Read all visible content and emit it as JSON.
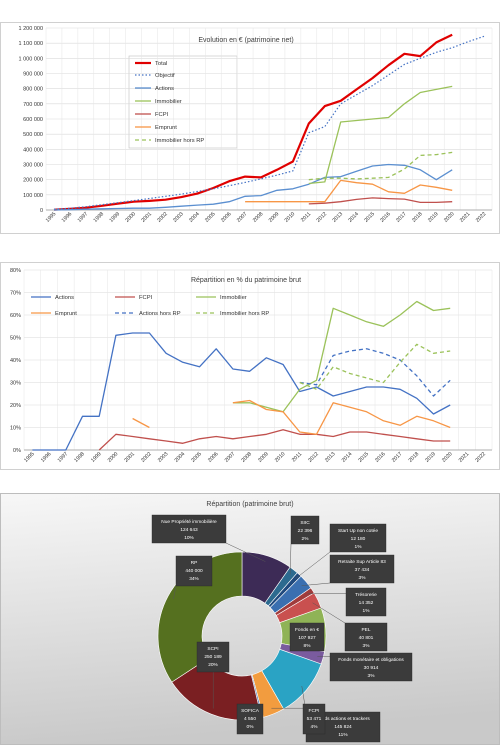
{
  "chart_data": [
    {
      "type": "line",
      "title": "Evolution  en € (patrimoine  net)",
      "x": [
        "1995",
        "1996",
        "1997",
        "1998",
        "1999",
        "2000",
        "2001",
        "2002",
        "2003",
        "2004",
        "2005",
        "2006",
        "2007",
        "2008",
        "2009",
        "2010",
        "2011",
        "2012",
        "2013",
        "2014",
        "2015",
        "2016",
        "2017",
        "2018",
        "2019",
        "2020",
        "2021",
        "2022"
      ],
      "ylim": [
        0,
        1200000
      ],
      "yticks": [
        "0",
        "100 000",
        "200 000",
        "300 000",
        "400 000",
        "500 000",
        "600 000",
        "700 000",
        "800 000",
        "900 000",
        "1 000 000",
        "1 100 000",
        "1 200 000"
      ],
      "grid": true,
      "legend_position": "inside-top-left",
      "series": [
        {
          "name": "Total",
          "color": "#e00000",
          "dash": "solid",
          "width": 2.2,
          "values": [
            2000,
            8000,
            15000,
            28000,
            42000,
            55000,
            60000,
            68000,
            85000,
            108000,
            145000,
            190000,
            220000,
            215000,
            265000,
            320000,
            570000,
            685000,
            720000,
            795000,
            870000,
            955000,
            1030000,
            1015000,
            1105000,
            1155000,
            null,
            null
          ]
        },
        {
          "name": "Objectif",
          "color": "#4472c4",
          "dash": "dot",
          "width": 1.2,
          "values": [
            5000,
            12000,
            22000,
            35000,
            48000,
            62000,
            76000,
            90000,
            105000,
            122000,
            140000,
            160000,
            182000,
            205000,
            230000,
            258000,
            510000,
            550000,
            700000,
            760000,
            820000,
            890000,
            960000,
            1000000,
            1040000,
            1070000,
            1110000,
            1145000
          ]
        },
        {
          "name": "Actions",
          "color": "#5b8fd0",
          "dash": "solid",
          "width": 1.3,
          "values": [
            0,
            2000,
            5000,
            8000,
            10000,
            12000,
            12000,
            18000,
            25000,
            32000,
            38000,
            55000,
            90000,
            95000,
            130000,
            140000,
            170000,
            215000,
            220000,
            255000,
            290000,
            300000,
            295000,
            265000,
            200000,
            265000,
            null,
            null
          ]
        },
        {
          "name": "Immobilier",
          "color": "#9bc25a",
          "dash": "solid",
          "width": 1.3,
          "values": [
            null,
            null,
            null,
            null,
            null,
            null,
            null,
            null,
            null,
            null,
            null,
            null,
            null,
            null,
            null,
            null,
            175000,
            185000,
            580000,
            590000,
            600000,
            610000,
            700000,
            775000,
            795000,
            815000,
            null,
            null
          ]
        },
        {
          "name": "FCPI",
          "color": "#c0504d",
          "dash": "solid",
          "width": 1.3,
          "values": [
            null,
            null,
            null,
            null,
            null,
            null,
            null,
            null,
            null,
            null,
            null,
            null,
            null,
            null,
            null,
            null,
            40000,
            45000,
            55000,
            70000,
            80000,
            75000,
            72000,
            50000,
            50000,
            55000,
            null,
            null
          ]
        },
        {
          "name": "Emprunt",
          "color": "#f79646",
          "dash": "solid",
          "width": 1.3,
          "values": [
            null,
            null,
            null,
            null,
            null,
            null,
            null,
            null,
            null,
            null,
            null,
            null,
            55000,
            55000,
            55000,
            55000,
            55000,
            55000,
            195000,
            180000,
            170000,
            120000,
            110000,
            165000,
            150000,
            130000,
            null,
            null
          ]
        },
        {
          "name": "Immobilier hors RP",
          "color": "#9bc25a",
          "dash": "dash",
          "width": 1.3,
          "values": [
            null,
            null,
            null,
            null,
            null,
            null,
            null,
            null,
            null,
            null,
            null,
            null,
            null,
            null,
            null,
            null,
            200000,
            210000,
            210000,
            205000,
            210000,
            215000,
            270000,
            360000,
            365000,
            380000,
            null,
            null
          ]
        }
      ]
    },
    {
      "type": "line",
      "title": "Répartition en % du patrimoine brut",
      "x": [
        "1995",
        "1996",
        "1997",
        "1998",
        "1999",
        "2000",
        "2001",
        "2002",
        "2003",
        "2004",
        "2005",
        "2006",
        "2007",
        "2008",
        "2009",
        "2010",
        "2011",
        "2012",
        "2013",
        "2014",
        "2015",
        "2016",
        "2017",
        "2018",
        "2019",
        "2020",
        "2021",
        "2022"
      ],
      "ylim": [
        0,
        80
      ],
      "yticks": [
        "0%",
        "10%",
        "20%",
        "30%",
        "40%",
        "50%",
        "60%",
        "70%",
        "80%"
      ],
      "grid": true,
      "legend_position": "inside-top",
      "series": [
        {
          "name": "Actions",
          "color": "#4472c4",
          "dash": "solid",
          "values": [
            0,
            0,
            0,
            15,
            15,
            51,
            52,
            52,
            43,
            39,
            37,
            45,
            36,
            35,
            41,
            38,
            26,
            28,
            24,
            26,
            28,
            28,
            27,
            23,
            16,
            20,
            null,
            null
          ]
        },
        {
          "name": "FCPI",
          "color": "#c0504d",
          "dash": "solid",
          "values": [
            null,
            null,
            null,
            null,
            0,
            7,
            6,
            5,
            4,
            3,
            5,
            6,
            5,
            6,
            7,
            9,
            7,
            7,
            6,
            8,
            8,
            7,
            6,
            5,
            4,
            4,
            null,
            null
          ]
        },
        {
          "name": "Immobilier",
          "color": "#9bc25a",
          "dash": "solid",
          "values": [
            null,
            null,
            null,
            null,
            null,
            null,
            null,
            null,
            null,
            null,
            null,
            null,
            21,
            21,
            19,
            17,
            27,
            31,
            63,
            60,
            57,
            55,
            60,
            66,
            62,
            63,
            null,
            null
          ]
        },
        {
          "name": "Emprunt",
          "color": "#f79646",
          "dash": "solid",
          "values": [
            null,
            null,
            null,
            null,
            null,
            null,
            14,
            10,
            null,
            null,
            null,
            null,
            21,
            22,
            18,
            17,
            8,
            7,
            21,
            19,
            17,
            13,
            11,
            15,
            13,
            10,
            null,
            null
          ]
        },
        {
          "name": "Actions hors RP",
          "color": "#4472c4",
          "dash": "dash",
          "values": [
            null,
            null,
            null,
            null,
            null,
            null,
            null,
            null,
            null,
            null,
            null,
            null,
            null,
            null,
            null,
            null,
            30,
            29,
            42,
            44,
            45,
            43,
            40,
            33,
            24,
            31,
            null,
            null
          ]
        },
        {
          "name": "Immobilier hors RP",
          "color": "#9bc25a",
          "dash": "dash",
          "values": [
            null,
            null,
            null,
            null,
            null,
            null,
            null,
            null,
            null,
            null,
            null,
            null,
            null,
            null,
            null,
            null,
            30,
            27,
            37,
            34,
            32,
            30,
            39,
            47,
            43,
            44,
            null,
            null
          ]
        }
      ]
    },
    {
      "type": "pie",
      "title": "Répartition  (patrimoine brut)",
      "slices": [
        {
          "label": "Nue Propriété immobilière",
          "value_text": "124 643",
          "pct_text": "10%",
          "value": 124643,
          "color": "#3d2b56"
        },
        {
          "label": "SIIC",
          "value_text": "22 396",
          "pct_text": "2%",
          "value": 22396,
          "color": "#2c6a8f"
        },
        {
          "label": "Start Up non cotée",
          "value_text": "12 180",
          "pct_text": "1%",
          "value": 12180,
          "color": "#1f497d"
        },
        {
          "label": "Retraite Sup Article 83",
          "value_text": "37 434",
          "pct_text": "3%",
          "value": 37434,
          "color": "#3a6fb0"
        },
        {
          "label": "Trésorerie",
          "value_text": "14 352",
          "pct_text": "1%",
          "value": 14352,
          "color": "#a03b3b"
        },
        {
          "label": "PEL",
          "value_text": "40 801",
          "pct_text": "3%",
          "value": 40801,
          "color": "#c9504f"
        },
        {
          "label": "Fonds en €",
          "value_text": "107 927",
          "pct_text": "8%",
          "value": 107927,
          "color": "#8fb356"
        },
        {
          "label": "Fonds monétaire et obligations",
          "value_text": "30 914",
          "pct_text": "3%",
          "value": 30914,
          "color": "#7a5b9e"
        },
        {
          "label": "Fonds actions et trackers",
          "value_text": "145 824",
          "pct_text": "11%",
          "value": 145824,
          "color": "#2aa3c4"
        },
        {
          "label": "FCPI",
          "value_text": "53 471",
          "pct_text": "4%",
          "value": 53471,
          "color": "#f29c3f"
        },
        {
          "label": "SOFICA",
          "value_text": "4 550",
          "pct_text": "0%",
          "value": 4550,
          "color": "#4e76b8"
        },
        {
          "label": "SCPI",
          "value_text": "250 189",
          "pct_text": "20%",
          "value": 250189,
          "color": "#7a1f22"
        },
        {
          "label": "RP",
          "value_text": "440 000",
          "pct_text": "34%",
          "value": 440000,
          "color": "#55701f"
        }
      ]
    }
  ]
}
